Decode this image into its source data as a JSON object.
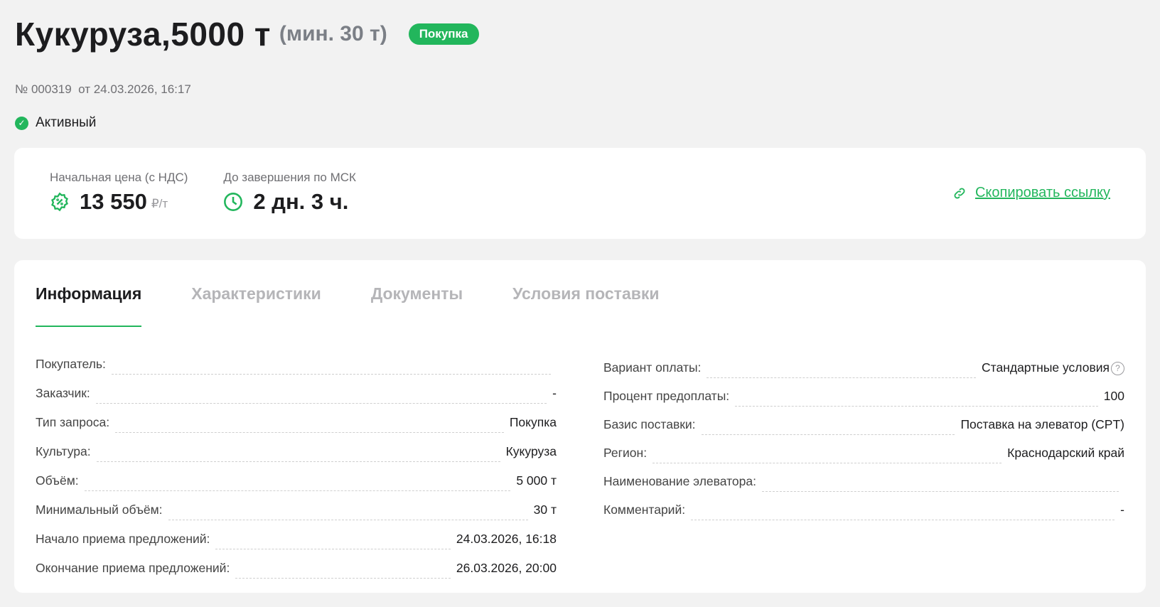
{
  "header": {
    "title": "Кукуруза,5000 т",
    "min_volume": "(мин. 30 т)",
    "badge": "Покупка",
    "number": "№ 000319",
    "date": "от 24.03.2026, 16:17",
    "status": "Активный"
  },
  "summary": {
    "price_label": "Начальная цена (с НДС)",
    "price": "13 550",
    "price_unit": "₽/т",
    "deadline_label": "До завершения по МСК",
    "deadline": "2 дн. 3 ч.",
    "copy_link": "Скопировать ссылку"
  },
  "tabs": [
    {
      "label": "Информация",
      "active": true
    },
    {
      "label": "Характеристики"
    },
    {
      "label": "Документы"
    },
    {
      "label": "Условия поставки"
    }
  ],
  "left": [
    {
      "k": "Покупатель:",
      "v": ""
    },
    {
      "k": "Заказчик:",
      "v": "-"
    },
    {
      "k": "Тип запроса:",
      "v": "Покупка"
    },
    {
      "k": "Культура:",
      "v": "Кукуруза"
    },
    {
      "k": "Объём:",
      "v": "5 000 т"
    },
    {
      "k": "Минимальный объём:",
      "v": "30 т"
    },
    {
      "k": "Начало приема предложений:",
      "v": "24.03.2026, 16:18"
    },
    {
      "k": "Окончание приема предложений:",
      "v": "26.03.2026, 20:00"
    }
  ],
  "right": [
    {
      "k": "Вариант оплаты:",
      "v": "Стандартные условия"
    },
    {
      "k": "Процент предоплаты:",
      "v": "100"
    },
    {
      "k": "Базис поставки:",
      "v": "Поставка на элеватор (CPT)"
    },
    {
      "k": "Регион:",
      "v": "Краснодарский край"
    },
    {
      "k": "Наименование элеватора:",
      "v": ""
    },
    {
      "k": "Комментарий:",
      "v": "-"
    }
  ],
  "colors": {
    "accent": "#22b65c"
  }
}
